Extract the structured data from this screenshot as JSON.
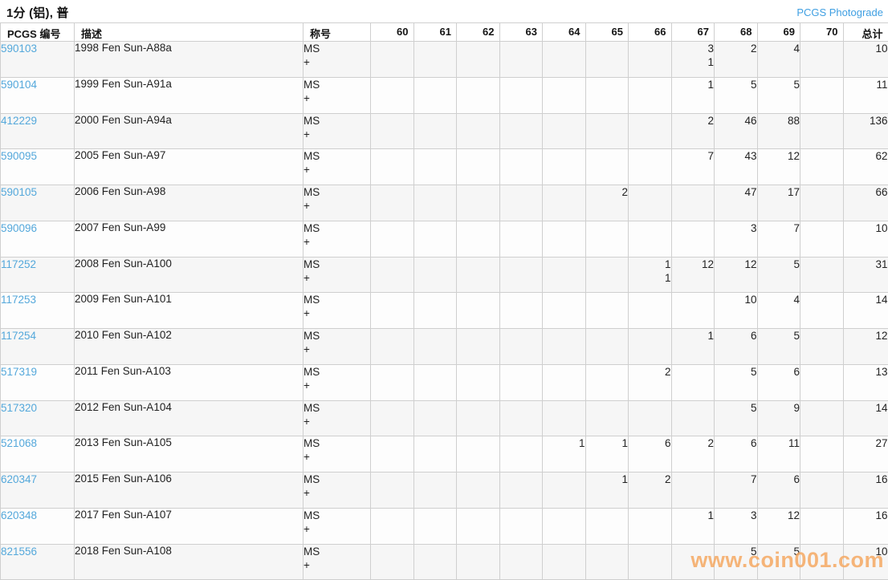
{
  "page": {
    "title": "1分 (铝), 普",
    "photograde_link": "PCGS Photograde",
    "watermark": "www.coin001.com"
  },
  "colors": {
    "link_blue": "#54a8db",
    "photograde_blue": "#3f9fe2",
    "watermark_orange": "#f5a963",
    "odd_row_bg": "#f6f6f6",
    "border_gray": "#cfcfcf"
  },
  "table": {
    "header": [
      "PCGS 编号",
      "描述",
      "称号",
      "60",
      "61",
      "62",
      "63",
      "64",
      "65",
      "66",
      "67",
      "68",
      "69",
      "70",
      "总计"
    ],
    "grade_columns": [
      "60",
      "61",
      "62",
      "63",
      "64",
      "65",
      "66",
      "67",
      "68",
      "69",
      "70"
    ],
    "designation_lines": [
      "MS",
      "+"
    ],
    "rows": [
      {
        "id": "590103",
        "desc": "1998 Fen Sun-A88a",
        "grades": {
          "67": [
            "3",
            "1"
          ],
          "68": [
            "2"
          ],
          "69": [
            "4"
          ]
        },
        "total": "10"
      },
      {
        "id": "590104",
        "desc": "1999 Fen Sun-A91a",
        "grades": {
          "67": [
            "1"
          ],
          "68": [
            "5"
          ],
          "69": [
            "5"
          ]
        },
        "total": "11"
      },
      {
        "id": "412229",
        "desc": "2000 Fen Sun-A94a",
        "grades": {
          "67": [
            "2"
          ],
          "68": [
            "46"
          ],
          "69": [
            "88"
          ]
        },
        "total": "136"
      },
      {
        "id": "590095",
        "desc": "2005 Fen Sun-A97",
        "grades": {
          "67": [
            "7"
          ],
          "68": [
            "43"
          ],
          "69": [
            "12"
          ]
        },
        "total": "62"
      },
      {
        "id": "590105",
        "desc": "2006 Fen Sun-A98",
        "grades": {
          "65": [
            "2"
          ],
          "68": [
            "47"
          ],
          "69": [
            "17"
          ]
        },
        "total": "66"
      },
      {
        "id": "590096",
        "desc": "2007 Fen Sun-A99",
        "grades": {
          "68": [
            "3"
          ],
          "69": [
            "7"
          ]
        },
        "total": "10"
      },
      {
        "id": "117252",
        "desc": "2008 Fen Sun-A100",
        "grades": {
          "66": [
            "1",
            "1"
          ],
          "67": [
            "12"
          ],
          "68": [
            "12"
          ],
          "69": [
            "5"
          ]
        },
        "total": "31"
      },
      {
        "id": "117253",
        "desc": "2009 Fen Sun-A101",
        "grades": {
          "68": [
            "10"
          ],
          "69": [
            "4"
          ]
        },
        "total": "14"
      },
      {
        "id": "117254",
        "desc": "2010 Fen Sun-A102",
        "grades": {
          "67": [
            "1"
          ],
          "68": [
            "6"
          ],
          "69": [
            "5"
          ]
        },
        "total": "12"
      },
      {
        "id": "517319",
        "desc": "2011 Fen Sun-A103",
        "grades": {
          "66": [
            "2"
          ],
          "68": [
            "5"
          ],
          "69": [
            "6"
          ]
        },
        "total": "13"
      },
      {
        "id": "517320",
        "desc": "2012 Fen Sun-A104",
        "grades": {
          "68": [
            "5"
          ],
          "69": [
            "9"
          ]
        },
        "total": "14"
      },
      {
        "id": "521068",
        "desc": "2013 Fen Sun-A105",
        "grades": {
          "64": [
            "1"
          ],
          "65": [
            "1"
          ],
          "66": [
            "6"
          ],
          "67": [
            "2"
          ],
          "68": [
            "6"
          ],
          "69": [
            "11"
          ]
        },
        "total": "27"
      },
      {
        "id": "620347",
        "desc": "2015 Fen Sun-A106",
        "grades": {
          "65": [
            "1"
          ],
          "66": [
            "2"
          ],
          "68": [
            "7"
          ],
          "69": [
            "6"
          ]
        },
        "total": "16"
      },
      {
        "id": "620348",
        "desc": "2017 Fen Sun-A107",
        "grades": {
          "67": [
            "1"
          ],
          "68": [
            "3"
          ],
          "69": [
            "12"
          ]
        },
        "total": "16"
      },
      {
        "id": "821556",
        "desc": "2018 Fen Sun-A108",
        "grades": {
          "68": [
            "5"
          ],
          "69": [
            "5"
          ]
        },
        "total": "10"
      }
    ]
  }
}
